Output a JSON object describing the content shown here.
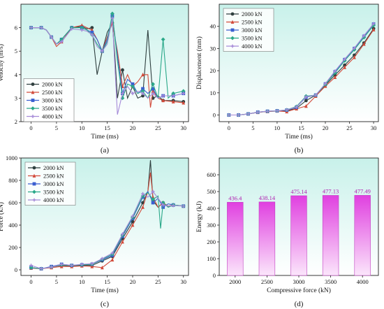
{
  "legend_labels": [
    "2000 kN",
    "2500 kN",
    "3000 kN",
    "3500 kN",
    "4000 kN"
  ],
  "series_colors": [
    "#2f3f3f",
    "#d24a3a",
    "#3a5fd0",
    "#2aa889",
    "#a58ad8"
  ],
  "chart_data": [
    {
      "type": "line",
      "panel_label": "(a)",
      "title": "",
      "xlabel": "Time (ms)",
      "ylabel": "Velocity (m/s)",
      "xlim": [
        -2,
        31
      ],
      "ylim": [
        2,
        7
      ],
      "xticks": [
        0,
        5,
        10,
        15,
        20,
        25,
        30
      ],
      "yticks": [
        2,
        3,
        4,
        5,
        6
      ],
      "legend_position": "bottom-left",
      "background": "gradient-cyan",
      "series": [
        {
          "name": "2000 kN",
          "x": [
            0,
            2,
            3,
            4,
            5,
            6,
            8,
            10,
            11,
            12,
            13,
            14,
            15,
            16,
            16.5,
            17,
            18,
            19,
            20,
            21,
            22,
            23,
            24,
            25,
            26,
            28,
            30
          ],
          "y": [
            6.0,
            6.0,
            5.9,
            5.6,
            5.3,
            5.5,
            6.0,
            6.05,
            5.95,
            6.0,
            4.0,
            5.0,
            5.8,
            6.2,
            4.8,
            3.0,
            4.2,
            3.0,
            3.5,
            3.0,
            3.1,
            5.9,
            3.0,
            3.1,
            2.9,
            2.9,
            2.85
          ]
        },
        {
          "name": "2500 kN",
          "x": [
            0,
            2,
            3,
            4,
            5,
            6,
            8,
            10,
            11,
            12,
            13,
            14,
            15,
            16,
            17,
            18,
            19,
            20,
            21,
            22,
            23,
            23.5,
            24,
            25,
            26,
            28,
            30
          ],
          "y": [
            6.0,
            6.0,
            5.9,
            5.6,
            5.2,
            5.4,
            6.0,
            6.1,
            6.0,
            5.9,
            5.5,
            5.0,
            5.6,
            6.2,
            5.0,
            3.5,
            4.0,
            3.5,
            3.7,
            4.0,
            4.0,
            2.6,
            3.3,
            3.0,
            2.9,
            2.85,
            2.8
          ]
        },
        {
          "name": "3000 kN",
          "x": [
            0,
            2,
            3,
            4,
            5,
            6,
            8,
            10,
            11,
            12,
            13,
            14,
            15,
            16,
            17,
            18,
            19,
            20,
            21,
            22,
            23,
            24,
            25,
            26,
            28,
            30
          ],
          "y": [
            6.0,
            6.0,
            5.9,
            5.6,
            5.3,
            5.5,
            6.0,
            6.0,
            5.9,
            5.8,
            5.5,
            5.0,
            5.5,
            6.5,
            4.8,
            3.2,
            3.8,
            3.6,
            3.2,
            3.4,
            3.2,
            3.4,
            3.0,
            3.1,
            3.1,
            3.2
          ]
        },
        {
          "name": "3500 kN",
          "x": [
            0,
            2,
            3,
            4,
            5,
            6,
            8,
            10,
            11,
            12,
            13,
            14,
            15,
            16,
            17,
            18,
            19,
            20,
            21,
            22,
            23,
            24,
            25,
            26,
            27,
            28,
            30
          ],
          "y": [
            6.0,
            6.0,
            5.9,
            5.6,
            5.3,
            5.5,
            6.0,
            6.0,
            5.9,
            5.7,
            5.3,
            5.0,
            5.4,
            6.6,
            4.6,
            3.0,
            3.6,
            3.5,
            3.2,
            3.3,
            3.0,
            3.6,
            3.0,
            5.5,
            3.0,
            3.2,
            3.3
          ]
        },
        {
          "name": "4000 kN",
          "x": [
            0,
            2,
            3,
            4,
            5,
            6,
            8,
            10,
            11,
            12,
            13,
            14,
            15,
            16,
            17,
            18,
            19,
            20,
            21,
            22,
            23,
            24,
            25,
            26,
            28,
            30
          ],
          "y": [
            6.0,
            6.0,
            5.9,
            5.6,
            5.3,
            5.4,
            5.95,
            5.9,
            5.85,
            5.7,
            5.2,
            5.0,
            5.3,
            6.4,
            2.3,
            3.2,
            3.5,
            3.2,
            3.3,
            3.2,
            3.0,
            3.2,
            3.0,
            3.1,
            3.1,
            3.2
          ]
        }
      ]
    },
    {
      "type": "line",
      "panel_label": "(b)",
      "title": "",
      "xlabel": "Time (ms)",
      "ylabel": "Displacement (mm)",
      "xlim": [
        -2,
        31
      ],
      "ylim": [
        -3,
        50
      ],
      "xticks": [
        0,
        5,
        10,
        15,
        20,
        25,
        30
      ],
      "yticks": [
        0,
        10,
        20,
        30,
        40
      ],
      "legend_position": "top-left",
      "background": "gradient-cyan",
      "series": [
        {
          "name": "2000 kN",
          "x": [
            0,
            2,
            4,
            6,
            8,
            10,
            12,
            14,
            16,
            18,
            20,
            22,
            24,
            26,
            28,
            30
          ],
          "y": [
            0,
            0,
            0.5,
            1.2,
            1.6,
            1.8,
            2.0,
            3.0,
            6.5,
            9.0,
            13.5,
            18.0,
            22.5,
            27.0,
            32.5,
            39.0
          ]
        },
        {
          "name": "2500 kN",
          "x": [
            0,
            2,
            4,
            6,
            8,
            10,
            12,
            14,
            16,
            18,
            20,
            22,
            24,
            26,
            28,
            30
          ],
          "y": [
            0,
            0,
            0.5,
            1.2,
            1.6,
            1.8,
            1.5,
            2.8,
            4.0,
            8.5,
            13.0,
            17.0,
            21.5,
            26.0,
            32.0,
            38.5
          ]
        },
        {
          "name": "3000 kN",
          "x": [
            0,
            2,
            4,
            6,
            8,
            10,
            12,
            14,
            16,
            18,
            20,
            22,
            24,
            26,
            28,
            30
          ],
          "y": [
            0,
            0,
            0.5,
            1.3,
            1.7,
            1.9,
            2.2,
            3.5,
            8.0,
            9.0,
            14.0,
            19.5,
            25.0,
            30.0,
            35.5,
            41.0
          ]
        },
        {
          "name": "3500 kN",
          "x": [
            0,
            2,
            4,
            6,
            8,
            10,
            12,
            14,
            16,
            18,
            20,
            22,
            24,
            26,
            28,
            30
          ],
          "y": [
            0,
            0,
            0.5,
            1.3,
            1.7,
            1.9,
            2.3,
            3.8,
            8.5,
            9.0,
            13.8,
            19.0,
            24.5,
            29.5,
            35.0,
            40.5
          ]
        },
        {
          "name": "4000 kN",
          "x": [
            0,
            2,
            4,
            6,
            8,
            10,
            12,
            14,
            16,
            18,
            20,
            22,
            24,
            26,
            28,
            30
          ],
          "y": [
            0,
            0,
            0.5,
            1.3,
            1.7,
            1.9,
            2.3,
            3.6,
            8.2,
            9.0,
            14.2,
            19.8,
            25.2,
            30.2,
            35.8,
            41.2
          ]
        }
      ]
    },
    {
      "type": "line",
      "panel_label": "(c)",
      "title": "",
      "xlabel": "Time (ms)",
      "ylabel": "Force (kN)",
      "xlim": [
        -2,
        31
      ],
      "ylim": [
        -50,
        1000
      ],
      "xticks": [
        0,
        5,
        10,
        15,
        20,
        25,
        30
      ],
      "yticks": [
        0,
        200,
        400,
        600,
        800,
        1000
      ],
      "legend_position": "top-left",
      "background": "gradient-cyan",
      "series": [
        {
          "name": "2000 kN",
          "x": [
            0,
            2,
            4,
            6,
            8,
            10,
            12,
            14,
            16,
            18,
            20,
            22,
            23,
            23.5,
            24,
            25,
            26,
            27,
            28,
            30
          ],
          "y": [
            20,
            10,
            25,
            40,
            35,
            40,
            40,
            80,
            120,
            280,
            430,
            600,
            700,
            980,
            620,
            560,
            600,
            560,
            580,
            570
          ]
        },
        {
          "name": "2500 kN",
          "x": [
            0,
            2,
            4,
            6,
            8,
            10,
            12,
            14,
            16,
            18,
            20,
            22,
            23,
            23.5,
            24,
            25,
            26,
            27,
            28,
            30
          ],
          "y": [
            15,
            10,
            20,
            30,
            30,
            35,
            30,
            20,
            90,
            250,
            400,
            560,
            700,
            870,
            650,
            560,
            600,
            570,
            580,
            570
          ]
        },
        {
          "name": "3000 kN",
          "x": [
            0,
            2,
            4,
            6,
            8,
            10,
            12,
            14,
            16,
            18,
            20,
            22,
            23,
            24,
            25,
            26,
            27,
            28,
            30
          ],
          "y": [
            20,
            10,
            30,
            50,
            40,
            45,
            50,
            90,
            130,
            300,
            460,
            650,
            700,
            600,
            640,
            560,
            590,
            580,
            570
          ]
        },
        {
          "name": "3500 kN",
          "x": [
            0,
            2,
            4,
            6,
            8,
            10,
            12,
            14,
            16,
            18,
            20,
            22,
            23,
            24,
            25,
            25.5,
            26,
            27,
            28,
            30
          ],
          "y": [
            20,
            10,
            25,
            45,
            40,
            45,
            50,
            95,
            140,
            310,
            470,
            660,
            690,
            630,
            660,
            370,
            600,
            560,
            580,
            570
          ]
        },
        {
          "name": "4000 kN",
          "x": [
            0,
            2,
            4,
            6,
            8,
            10,
            12,
            14,
            16,
            18,
            20,
            22,
            23,
            24,
            25,
            26,
            27,
            28,
            30
          ],
          "y": [
            40,
            10,
            25,
            50,
            40,
            50,
            55,
            100,
            150,
            320,
            480,
            680,
            650,
            700,
            640,
            580,
            570,
            575,
            570
          ]
        }
      ]
    },
    {
      "type": "bar",
      "panel_label": "(d)",
      "title": "",
      "xlabel": "Compressive force (kN)",
      "ylabel": "Energy (kJ)",
      "categories": [
        "2000",
        "2500",
        "3000",
        "3500",
        "4000"
      ],
      "values": [
        436.4,
        438.14,
        475.14,
        477.13,
        477.49
      ],
      "value_labels": [
        "436.4",
        "438.14",
        "475.14",
        "477.13",
        "477.49"
      ],
      "ylim": [
        0,
        700
      ],
      "yticks": [
        0,
        100,
        200,
        300,
        400,
        500,
        600
      ],
      "bar_color": "#e040e0",
      "background": "gradient-cyan"
    }
  ]
}
